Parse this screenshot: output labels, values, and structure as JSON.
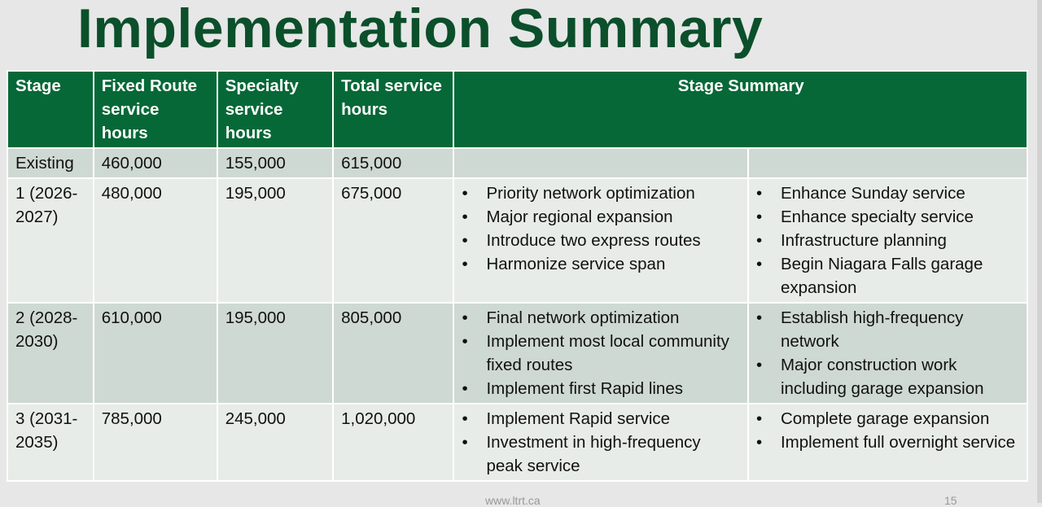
{
  "title": "Implementation Summary",
  "headers": [
    "Stage",
    "Fixed Route service hours",
    "Specialty service hours",
    "Total service hours",
    "Stage Summary"
  ],
  "rows": [
    {
      "stage": "Existing",
      "fixed": "460,000",
      "specialty": "155,000",
      "total": "615,000",
      "left": [],
      "right": []
    },
    {
      "stage": "1 (2026-2027)",
      "fixed": "480,000",
      "specialty": "195,000",
      "total": "675,000",
      "left": [
        "Priority network optimization",
        "Major regional expansion",
        "Introduce two express routes",
        "Harmonize service span"
      ],
      "right": [
        "Enhance Sunday service",
        "Enhance specialty service",
        "Infrastructure planning",
        "Begin Niagara Falls garage expansion"
      ]
    },
    {
      "stage": "2 (2028-2030)",
      "fixed": "610,000",
      "specialty": "195,000",
      "total": "805,000",
      "left": [
        "Final network optimization",
        "Implement most local community fixed routes",
        "Implement first Rapid lines"
      ],
      "right": [
        "Establish high-frequency network",
        "Major construction work including garage expansion"
      ]
    },
    {
      "stage": "3 (2031-2035)",
      "fixed": "785,000",
      "specialty": "245,000",
      "total": "1,020,000",
      "left": [
        "Implement Rapid service",
        "Investment in high-frequency peak service"
      ],
      "right": [
        "Complete garage expansion",
        "Implement full overnight service"
      ]
    }
  ],
  "footer": {
    "url": "www.ltrt.ca",
    "page": "15"
  },
  "colors": {
    "header": "#066837",
    "title": "#0b4f2b",
    "row_odd": "#cfd9d3",
    "row_even": "#e7ece8"
  }
}
